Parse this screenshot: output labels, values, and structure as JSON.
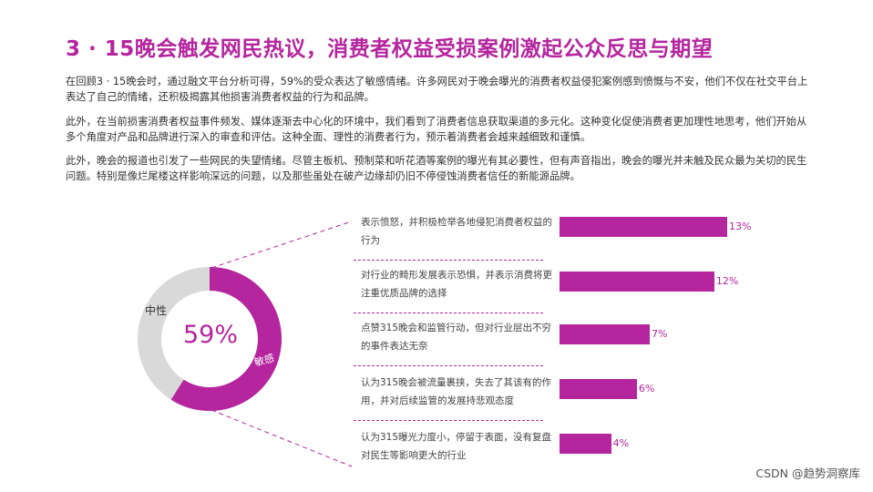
{
  "title": "3 · 15晚会触发网民热议，消费者权益受损案例激起公众反思与期望",
  "paragraphs": [
    "在回顾3 · 15晚会时，通过融文平台分析可得，59%的受众表达了敏感情绪。许多网民对于晚会曝光的消费者权益侵犯案例感到愤慨与不安，他们不仅在社交平台上表达了自己的情绪，还积极揭露其他损害消费者权益的行为和品牌。",
    "此外，在当前损害消费者权益事件频发、媒体逐渐去中心化的环境中，我们看到了消费者信息获取渠道的多元化。这种变化促使消费者更加理性地思考，他们开始从多个角度对产品和品牌进行深入的审查和评估。这种全面、理性的消费者行为，预示着消费者会越来越细致和谨慎。",
    "此外，晚会的报道也引发了一些网民的失望情绪。尽管主板机、预制菜和听花酒等案例的曝光有其必要性，但有声音指出，晚会的曝光并未触及民众最为关切的民生问题。特别是像烂尾楼这样影响深远的问题，以及那些虽处在破产边缘却仍旧不停侵蚀消费者信任的新能源品牌。"
  ],
  "donut": {
    "center_text": "59%",
    "neutral_label": "中性",
    "sensitive_label": "敏感",
    "sensitive_fraction": 0.59,
    "colors": {
      "sensitive": "#b5259e",
      "neutral": "#d9d9d9"
    }
  },
  "chart_data": {
    "type": "bar",
    "orientation": "horizontal",
    "categories": [
      "表示愤怒，并积极检举各地侵犯消费者权益的行为",
      "对行业的畸形发展表示恐惧，并表示消费将更注重优质品牌的选择",
      "点赞315晚会和监管行动，但对行业层出不穷的事件表达无奈",
      "认为315晚会被流量裹挟，失去了其该有的作用，并对后续监管的发展持悲观态度",
      "认为315曝光力度小，停留于表面，没有复盘对民生等影响更大的行业"
    ],
    "values": [
      13,
      12,
      7,
      6,
      4
    ],
    "value_labels": [
      "13%",
      "12%",
      "7%",
      "6%",
      "4%"
    ],
    "color": "#b5259e"
  },
  "watermark": "CSDN @趋势洞察库"
}
